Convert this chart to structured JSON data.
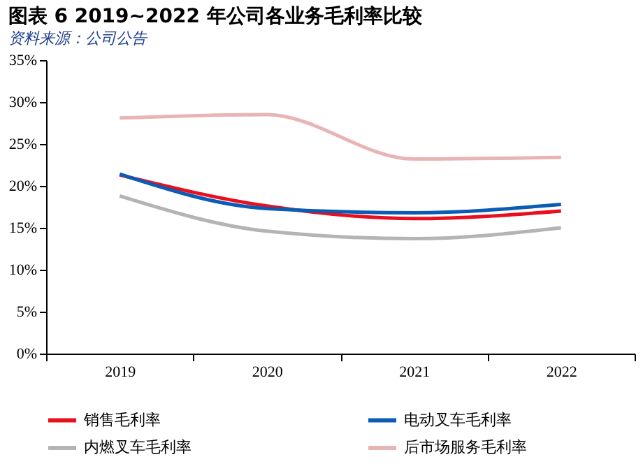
{
  "chart_data": {
    "type": "line",
    "title": "图表 6   2019~2022 年公司各业务毛利率比较",
    "categories": [
      "2019",
      "2020",
      "2021",
      "2022"
    ],
    "series": [
      {
        "name": "销售毛利率",
        "color": "#e8101e",
        "values": [
          21.3,
          17.6,
          16.1,
          17.0
        ]
      },
      {
        "name": "电动叉车毛利率",
        "color": "#0a5cb4",
        "values": [
          21.4,
          17.3,
          16.8,
          17.8
        ]
      },
      {
        "name": "内燃叉车毛利率",
        "color": "#b4b4b4",
        "values": [
          18.8,
          14.6,
          13.7,
          15.0
        ]
      },
      {
        "name": "后市场服务毛利率",
        "color": "#e8b4b4",
        "values": [
          28.1,
          28.5,
          23.2,
          23.4
        ]
      }
    ],
    "ylim": [
      0,
      35
    ],
    "yticks": [
      {
        "value": 0,
        "label": "0%"
      },
      {
        "value": 5,
        "label": "5%"
      },
      {
        "value": 10,
        "label": "10%"
      },
      {
        "value": 15,
        "label": "15%"
      },
      {
        "value": 20,
        "label": "20%"
      },
      {
        "value": 25,
        "label": "25%"
      },
      {
        "value": 30,
        "label": "30%"
      },
      {
        "value": 35,
        "label": "35%"
      }
    ],
    "grid": false,
    "legend": "bottom",
    "marker": "none",
    "line_style": "solid",
    "annotations": [
      "资料来源：公司公告"
    ]
  }
}
